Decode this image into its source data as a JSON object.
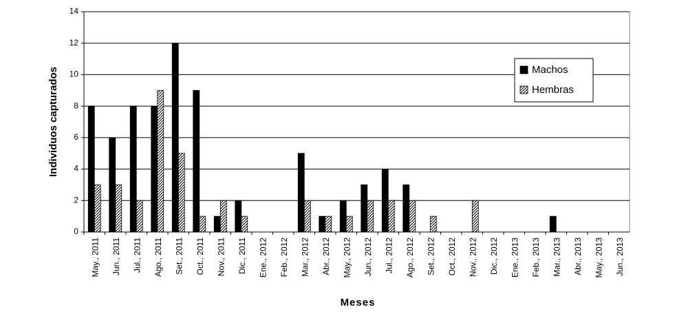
{
  "chart_data": {
    "type": "bar",
    "x_label": "Meses",
    "y_label": "Individuos capturados",
    "categories": [
      "May., 2011",
      "Jun., 2011",
      "Jul., 2011",
      "Ago., 2011",
      "Set., 2011",
      "Oct., 2011",
      "Nov., 2011",
      "Dic., 2011",
      "Ene., 2012",
      "Feb., 2012",
      "Mar., 2012",
      "Abr., 2012",
      "May., 2012",
      "Jun., 2012",
      "Jul., 2012",
      "Ago., 2012",
      "Set., 2012",
      "Oct., 2012",
      "Nov., 2012",
      "Dic., 2012",
      "Ene., 2013",
      "Feb., 2013",
      "Mar., 2013",
      "Abr., 2013",
      "May., 2013",
      "Jun., 2013"
    ],
    "series": [
      {
        "name": "Machos",
        "color": "#000000",
        "values": [
          8,
          6,
          8,
          8,
          12,
          9,
          1,
          2,
          0,
          0,
          5,
          1,
          2,
          3,
          4,
          3,
          0,
          0,
          0,
          0,
          0,
          0,
          1,
          0,
          0,
          0
        ]
      },
      {
        "name": "Hembras",
        "color": "#000000",
        "pattern": "hatch",
        "values": [
          3,
          3,
          2,
          9,
          5,
          1,
          2,
          1,
          0,
          0,
          2,
          1,
          1,
          2,
          2,
          2,
          1,
          0,
          2,
          0,
          0,
          0,
          0,
          0,
          0,
          0
        ]
      }
    ],
    "ylim": [
      0,
      14
    ],
    "yticks": [
      0,
      2,
      4,
      6,
      8,
      10,
      12,
      14
    ],
    "grid": true,
    "legend": "top-right"
  }
}
